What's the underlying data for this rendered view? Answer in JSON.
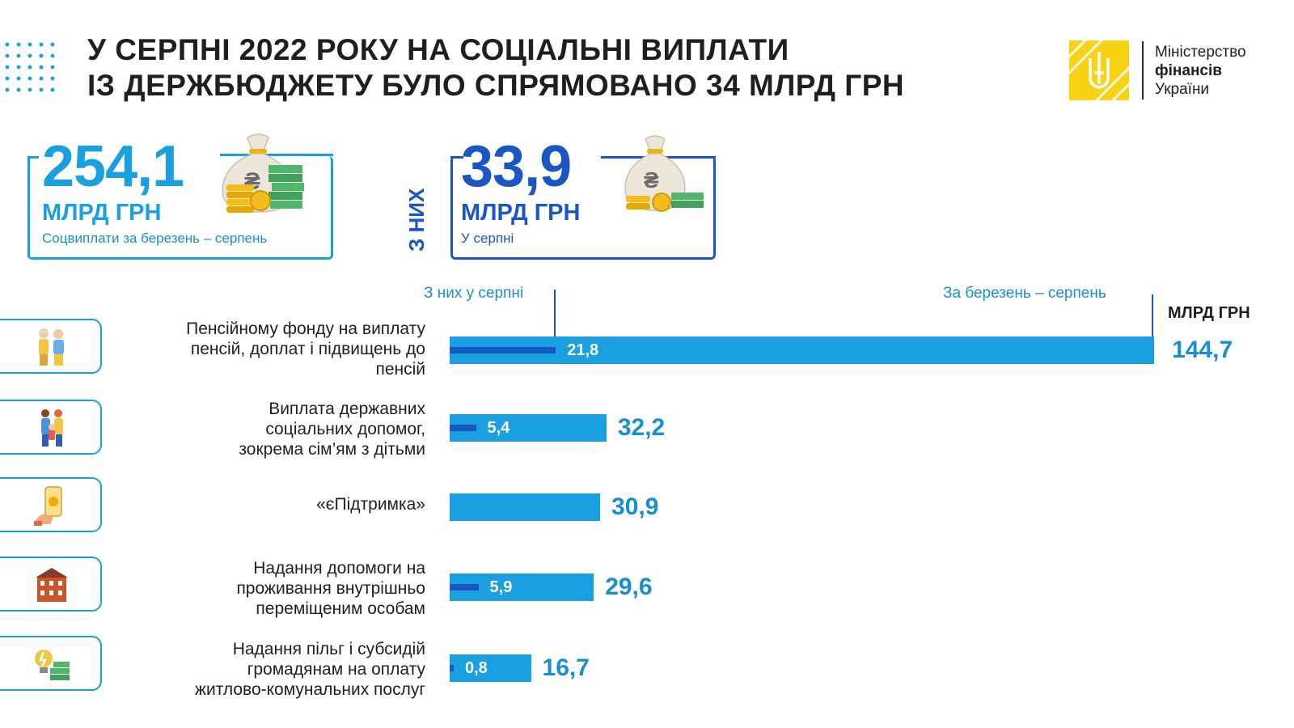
{
  "header": {
    "title_line1": "У СЕРПНІ 2022 РОКУ НА СОЦІАЛЬНІ ВИПЛАТИ",
    "title_line2": "ІЗ ДЕРЖБЮДЖЕТУ БУЛО СПРЯМОВАНО 34 МЛРД ГРН",
    "logo_line1": "Міністерство",
    "logo_line2": "фінансів",
    "logo_line3": "України"
  },
  "stats": {
    "total": {
      "value": "254,1",
      "unit": "МЛРД ГРН",
      "caption": "Соцвиплати за березень – серпень"
    },
    "of_them_label": "З НИХ",
    "august": {
      "value": "33,9",
      "unit": "МЛРД ГРН",
      "caption": "У серпні"
    }
  },
  "colors": {
    "total_bar": "#1aa0e0",
    "august_bar": "#1a56c4",
    "title": "#1f1f1f",
    "logo_yellow": "#f7d313"
  },
  "chart_data": {
    "type": "bar",
    "orientation": "horizontal",
    "unit_label": "МЛРД ГРН",
    "legend": {
      "august": "З них у серпні",
      "total": "За березень –  серпень"
    },
    "categories": [
      {
        "label": "Пенсійному фонду на виплату пенсій, доплат і підвищень до пенсій",
        "lines": [
          "Пенсійному фонду на виплату",
          "пенсій, доплат і підвищень до",
          "пенсій"
        ],
        "icon": "elderly-couple-icon",
        "total": 144.7,
        "total_label": "144,7",
        "august": 21.8,
        "august_label": "21,8"
      },
      {
        "label": "Виплата державних соціальних допомог, зокрема сім’ям з дітьми",
        "lines": [
          "Виплата державних",
          "соціальних допомог,",
          "зокрема сім’ям з дітьми"
        ],
        "icon": "family-icon",
        "total": 32.2,
        "total_label": "32,2",
        "august": 5.4,
        "august_label": "5,4"
      },
      {
        "label": "«єПідтримка»",
        "lines": [
          "«єПідтримка»"
        ],
        "icon": "smartphone-payment-icon",
        "total": 30.9,
        "total_label": "30,9",
        "august": null,
        "august_label": ""
      },
      {
        "label": "Надання допомоги на проживання внутрішньо переміщеним особам",
        "lines": [
          "Надання допомоги на",
          "проживання внутрішньо",
          "переміщеним особам"
        ],
        "icon": "house-icon",
        "total": 29.6,
        "total_label": "29,6",
        "august": 5.9,
        "august_label": "5,9"
      },
      {
        "label": "Надання пільг і субсидій громадянам на оплату житлово-комунальних послуг",
        "lines": [
          "Надання пільг і субсидій",
          "громадянам на оплату",
          "житлово-комунальних послуг"
        ],
        "icon": "lightbulb-money-icon",
        "total": 16.7,
        "total_label": "16,7",
        "august": 0.8,
        "august_label": "0,8"
      }
    ]
  }
}
